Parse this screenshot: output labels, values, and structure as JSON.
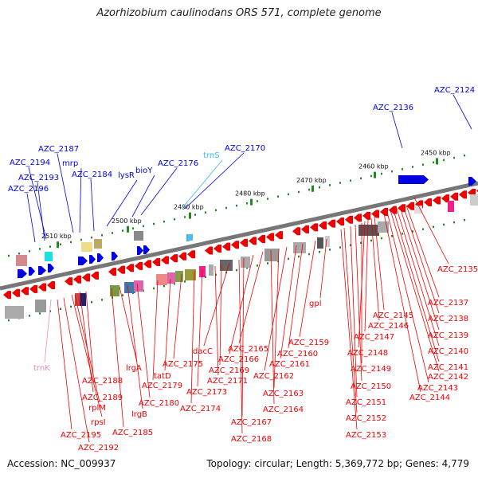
{
  "title": "Azorhizobium caulinodans ORS 571, complete genome",
  "footer": {
    "accession": "Accession: NC_009937",
    "stats": "Topology: circular; Length: 5,369,772 bp; Genes: 4,779"
  },
  "colors": {
    "forward": "#0000e0",
    "reverse": "#ee0000",
    "rna": "#33bbee",
    "trna": "#ee88bb",
    "backbone": "#777777",
    "tick_dot": "#228822"
  },
  "scale_labels": [
    "2450 kbp",
    "2460 kbp",
    "2470 kbp",
    "2480 kbp",
    "2490 kbp",
    "2500 kbp",
    "2510 kbp"
  ],
  "labels_top": [
    "AZC_2124",
    "AZC_2136",
    "AZC_2170",
    "trnS",
    "AZC_2176",
    "bioY",
    "lysR",
    "AZC_2184",
    "mrp",
    "AZC_2187",
    "AZC_2194",
    "AZC_2193",
    "AZC_2196"
  ],
  "labels_bottom": [
    "AZC_2135",
    "AZC_2137",
    "AZC_2138",
    "AZC_2139",
    "AZC_2140",
    "AZC_2141",
    "AZC_2142",
    "AZC_2143",
    "AZC_2144",
    "AZC_2145",
    "AZC_2146",
    "AZC_2147",
    "AZC_2148",
    "AZC_2149",
    "AZC_2150",
    "AZC_2151",
    "AZC_2152",
    "AZC_2153",
    "gpl",
    "AZC_2159",
    "AZC_2160",
    "AZC_2161",
    "AZC_2162",
    "AZC_2163",
    "AZC_2164",
    "AZC_2165",
    "AZC_2166",
    "AZC_2167",
    "AZC_2168",
    "dacC",
    "AZC_2169",
    "AZC_2171",
    "AZC_2173",
    "AZC_2174",
    "AZC_2175",
    "tatD",
    "AZC_2179",
    "lrgA",
    "AZC_2180",
    "lrgB",
    "AZC_2185",
    "AZC_2188",
    "AZC_2189",
    "rplM",
    "rpsI",
    "AZC_2195",
    "AZC_2192",
    "trnK"
  ]
}
